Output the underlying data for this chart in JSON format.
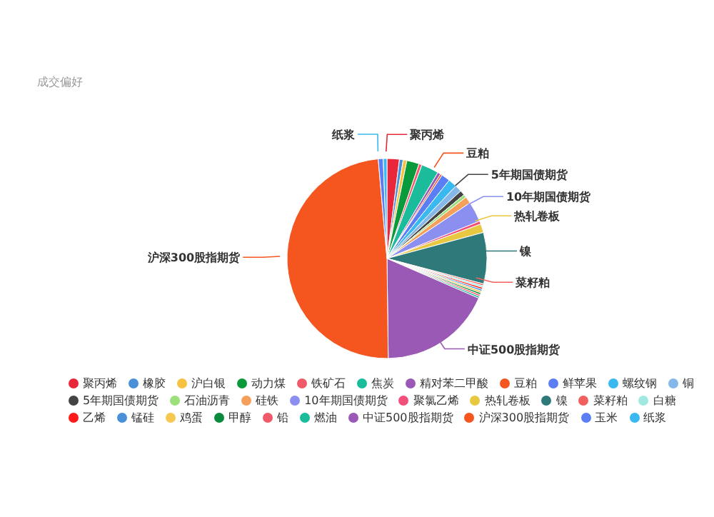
{
  "chart_data": {
    "type": "pie",
    "title": "成交偏好",
    "categories": [
      "聚丙烯",
      "橡胶",
      "沪白银",
      "动力煤",
      "铁矿石",
      "焦炭",
      "精对苯二甲酸",
      "豆粕",
      "鲜苹果",
      "螺纹钢",
      "铜",
      "5年期国债期货",
      "石油沥青",
      "硅铁",
      "10年期国债期货",
      "聚氯乙烯",
      "热轧卷板",
      "镍",
      "菜籽粕",
      "白糖",
      "乙烯",
      "锰硅",
      "鸡蛋",
      "甲醇",
      "铅",
      "燃油",
      "中证500股指期货",
      "沪深300股指期货",
      "玉米",
      "纸浆"
    ],
    "values": [
      2,
      0.6,
      0.6,
      2,
      0.5,
      2.8,
      0.5,
      0.3,
      1.4,
      1.4,
      1.1,
      0.8,
      0.5,
      1.1,
      3.3,
      0.5,
      1.4,
      8.3,
      0.3,
      0.3,
      0.3,
      0.3,
      0.3,
      0.3,
      0.3,
      0.3,
      18.3,
      48.8,
      0.8,
      0.6
    ],
    "colors": [
      "#e8283a",
      "#4a90d9",
      "#f5c242",
      "#0a9a3c",
      "#f05a6a",
      "#1abc9c",
      "#9b59b6",
      "#f5561f",
      "#5b7ef5",
      "#3ab8f0",
      "#85b8e8",
      "#444444",
      "#9be07a",
      "#f5a05a",
      "#8a8ff0",
      "#f0507a",
      "#e8c840",
      "#2e7a7a",
      "#f06060",
      "#a0e8e0",
      "#ff1a1a",
      "#4a90d9",
      "#f5c850",
      "#0a8a3c",
      "#f05a6a",
      "#1abc9c",
      "#9b59b6",
      "#f5561f",
      "#5b7ef5",
      "#3ab8f0"
    ],
    "legend": "bottom"
  }
}
